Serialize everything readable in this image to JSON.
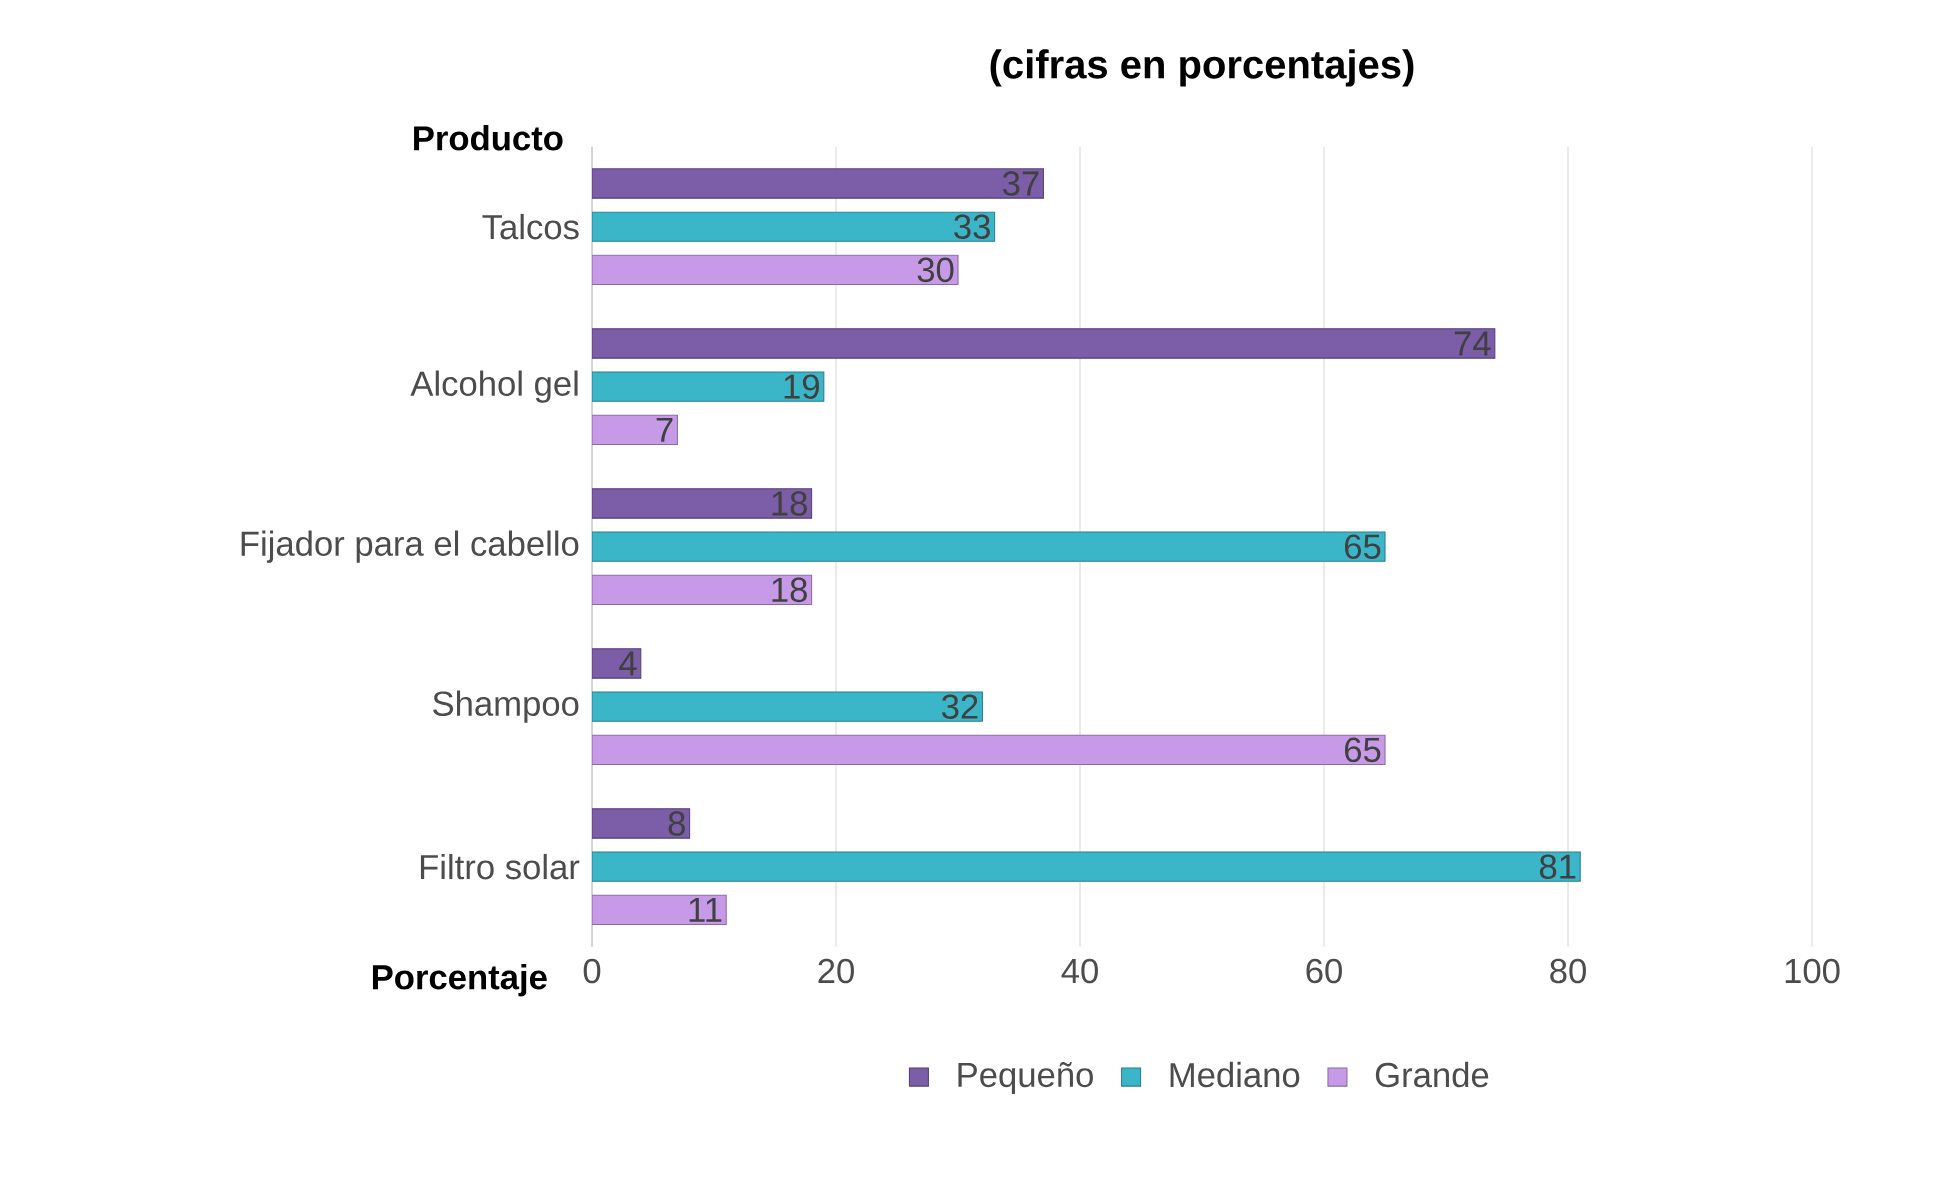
{
  "chart_data": {
    "type": "bar",
    "orientation": "horizontal",
    "title": "(cifras en porcentajes)",
    "xlabel": "Porcentaje",
    "ylabel": "Producto",
    "categories": [
      "Talcos",
      "Alcohol gel",
      "Fijador para el cabello",
      "Shampoo",
      "Filtro solar"
    ],
    "series": [
      {
        "name": "Pequeño",
        "color": "#7b5ea7",
        "values": [
          37,
          74,
          18,
          4,
          8
        ]
      },
      {
        "name": "Mediano",
        "color": "#3bb6c9",
        "values": [
          33,
          19,
          65,
          32,
          81
        ]
      },
      {
        "name": "Grande",
        "color": "#c79ae8",
        "values": [
          30,
          7,
          18,
          65,
          11
        ]
      }
    ],
    "xlim": [
      0,
      100
    ],
    "xticks": [
      0,
      20,
      40,
      60,
      80,
      100
    ],
    "grid": "x",
    "legend": "bottom",
    "data_labels": true
  }
}
